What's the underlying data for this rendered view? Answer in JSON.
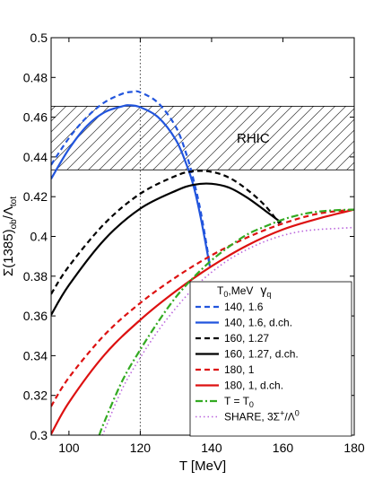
{
  "chart_data": {
    "type": "line",
    "xlabel": "T [MeV]",
    "ylabel_main": "Σ(1385)",
    "ylabel_sub1": "ob",
    "ylabel_slash": "/Λ",
    "ylabel_sub2": "tot",
    "xlim": [
      95,
      180
    ],
    "ylim": [
      0.3,
      0.5
    ],
    "xticks": [
      100,
      120,
      140,
      160,
      180
    ],
    "xtick_labels": [
      "100",
      "120",
      "140",
      "160",
      "180"
    ],
    "yticks": [
      0.3,
      0.32,
      0.34,
      0.36,
      0.38,
      0.4,
      0.42,
      0.44,
      0.46,
      0.48,
      0.5
    ],
    "ytick_labels": [
      "0.3",
      "0.32",
      "0.34",
      "0.36",
      "0.38",
      "0.4",
      "0.42",
      "0.44",
      "0.46",
      "0.48",
      "0.5"
    ],
    "grid": false,
    "reference_line_x": 120,
    "band": {
      "label": "RHIC",
      "y_low": 0.4335,
      "y_high": 0.4655,
      "pattern": "diagonal-hatch"
    },
    "legend": {
      "placement": "bottom-right",
      "header": "T",
      "header_sub": "0",
      "header_rest": ",MeV",
      "header_gamma": "γ",
      "header_gamma_sub": "q"
    },
    "series": [
      {
        "name": "140, 1.6",
        "color": "#2255dd",
        "dash": "dash",
        "x": [
          95,
          100,
          105,
          110,
          115,
          118,
          120,
          125,
          130,
          133,
          135,
          137,
          139.5
        ],
        "y": [
          0.436,
          0.4495,
          0.46,
          0.4675,
          0.4718,
          0.4728,
          0.4725,
          0.4672,
          0.455,
          0.441,
          0.428,
          0.412,
          0.386
        ]
      },
      {
        "name": "140, 1.6, d.ch.",
        "color": "#2255dd",
        "dash": "solid",
        "x": [
          95,
          100,
          105,
          110,
          115,
          117,
          120,
          125,
          130,
          133,
          135,
          137,
          139.5
        ],
        "y": [
          0.429,
          0.444,
          0.4555,
          0.4625,
          0.4655,
          0.466,
          0.465,
          0.46,
          0.4485,
          0.436,
          0.425,
          0.409,
          0.385
        ]
      },
      {
        "name": "160, 1.27",
        "color": "#000000",
        "dash": "dash",
        "x": [
          95,
          100,
          110,
          120,
          130,
          135,
          140,
          145,
          150,
          155,
          159
        ],
        "y": [
          0.371,
          0.385,
          0.4065,
          0.4215,
          0.4305,
          0.4328,
          0.4325,
          0.4295,
          0.4235,
          0.4155,
          0.4065
        ]
      },
      {
        "name": "160, 1.27, d.ch.",
        "color": "#000000",
        "dash": "solid",
        "x": [
          95,
          100,
          110,
          120,
          130,
          135,
          140,
          145,
          150,
          155,
          159.5
        ],
        "y": [
          0.3605,
          0.3755,
          0.3985,
          0.414,
          0.423,
          0.426,
          0.4265,
          0.4245,
          0.4195,
          0.413,
          0.407
        ]
      },
      {
        "name": "180, 1",
        "color": "#dd1111",
        "dash": "dash",
        "x": [
          95,
          100,
          110,
          120,
          130,
          140,
          150,
          160,
          170,
          180
        ],
        "y": [
          0.3145,
          0.329,
          0.3505,
          0.3665,
          0.3795,
          0.3905,
          0.3995,
          0.4065,
          0.4115,
          0.4135
        ]
      },
      {
        "name": "180, 1, d.ch.",
        "color": "#dd1111",
        "dash": "solid",
        "x": [
          95,
          100,
          110,
          120,
          130,
          140,
          150,
          160,
          170,
          180
        ],
        "y": [
          0.3005,
          0.3165,
          0.3405,
          0.358,
          0.3725,
          0.385,
          0.3955,
          0.4035,
          0.409,
          0.4135
        ]
      },
      {
        "name": "T = T",
        "name_sub": "0",
        "color": "#33aa22",
        "dash": "dashdot",
        "x": [
          108.5,
          110,
          115,
          120,
          125,
          130,
          135,
          140,
          145,
          150,
          155,
          160,
          165,
          170,
          175,
          180
        ],
        "y": [
          0.3,
          0.307,
          0.3275,
          0.343,
          0.357,
          0.3695,
          0.3795,
          0.388,
          0.395,
          0.401,
          0.405,
          0.4085,
          0.411,
          0.4125,
          0.4132,
          0.4135
        ]
      },
      {
        "name": "SHARE, 3Σ",
        "name_sup": "+",
        "name_rest": "/Λ",
        "name_sup2": "0",
        "color": "#bb66dd",
        "dash": "dot",
        "x": [
          109.5,
          110,
          115,
          120,
          125,
          130,
          135,
          140,
          145,
          150,
          155,
          160,
          165,
          170,
          175,
          180
        ],
        "y": [
          0.3,
          0.3025,
          0.3235,
          0.339,
          0.3525,
          0.364,
          0.374,
          0.382,
          0.3885,
          0.3935,
          0.3975,
          0.4005,
          0.4025,
          0.4035,
          0.404,
          0.4045
        ]
      }
    ]
  }
}
